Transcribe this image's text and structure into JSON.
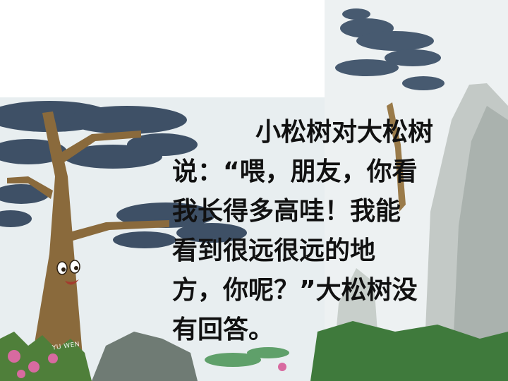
{
  "story": {
    "lines": [
      "小松树对大松树",
      "说：“喂，朋友，你看",
      "我长得多高哇！我能",
      "看到很远很远的地",
      "方，你呢？”大松树没",
      "有回答。"
    ]
  },
  "illustration": {
    "watermark": "YU WEN",
    "colors": {
      "sky": "#e9eef0",
      "trunk": "#8a6a3c",
      "foliage": "#3f5268",
      "cliff": "#bfc6c4",
      "grass": "#4f7f3a",
      "flower": "#d86aa0"
    }
  }
}
